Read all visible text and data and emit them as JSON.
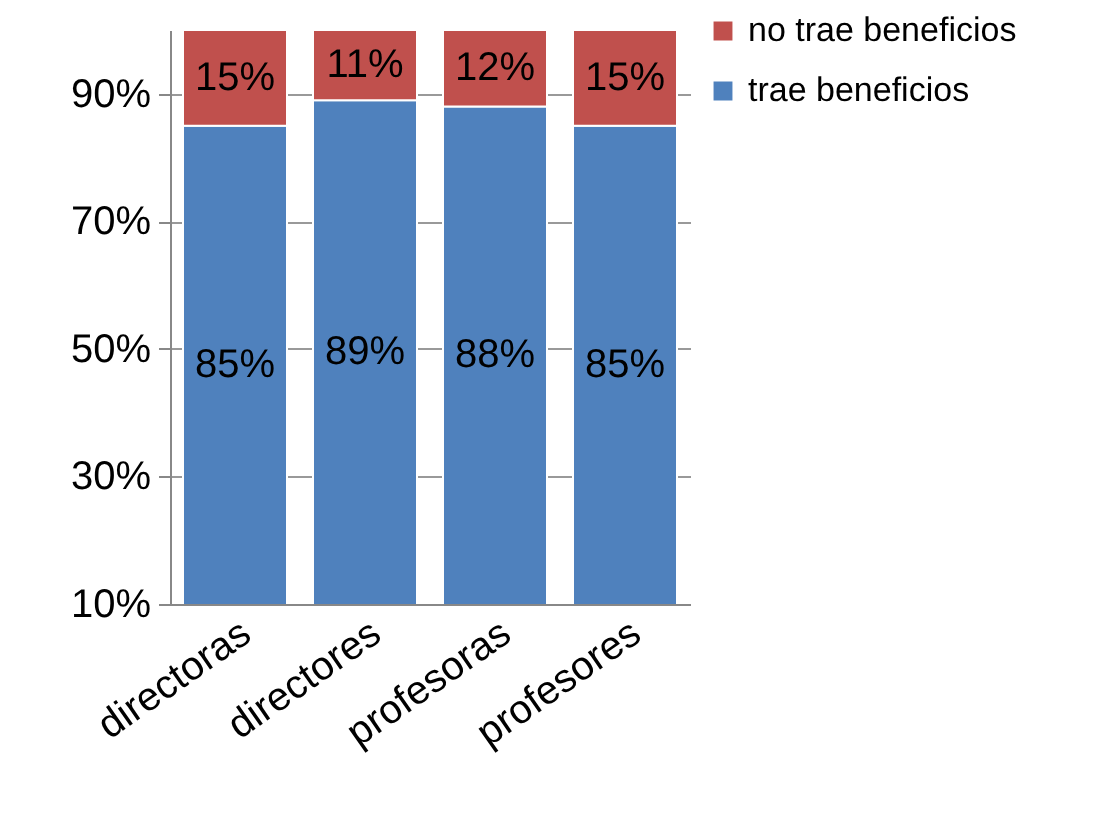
{
  "chart_data": {
    "type": "bar",
    "stacked": true,
    "categories": [
      "directoras",
      "directores",
      "profesoras",
      "profesores"
    ],
    "series": [
      {
        "name": "trae beneficios",
        "color": "#4f81bd",
        "values": [
          85,
          89,
          88,
          85
        ],
        "value_labels": [
          "85%",
          "89%",
          "88%",
          "85%"
        ]
      },
      {
        "name": "no trae beneficios",
        "color": "#c0504d",
        "values": [
          15,
          11,
          12,
          15
        ],
        "value_labels": [
          "15%",
          "11%",
          "12%",
          "15%"
        ]
      }
    ],
    "ylim": [
      10,
      100
    ],
    "yticks": [
      {
        "value": 10,
        "label": "10%"
      },
      {
        "value": 30,
        "label": "30%"
      },
      {
        "value": 50,
        "label": "50%"
      },
      {
        "value": 70,
        "label": "70%"
      },
      {
        "value": 90,
        "label": "90%"
      }
    ],
    "grid": "y",
    "legend": "top right"
  }
}
